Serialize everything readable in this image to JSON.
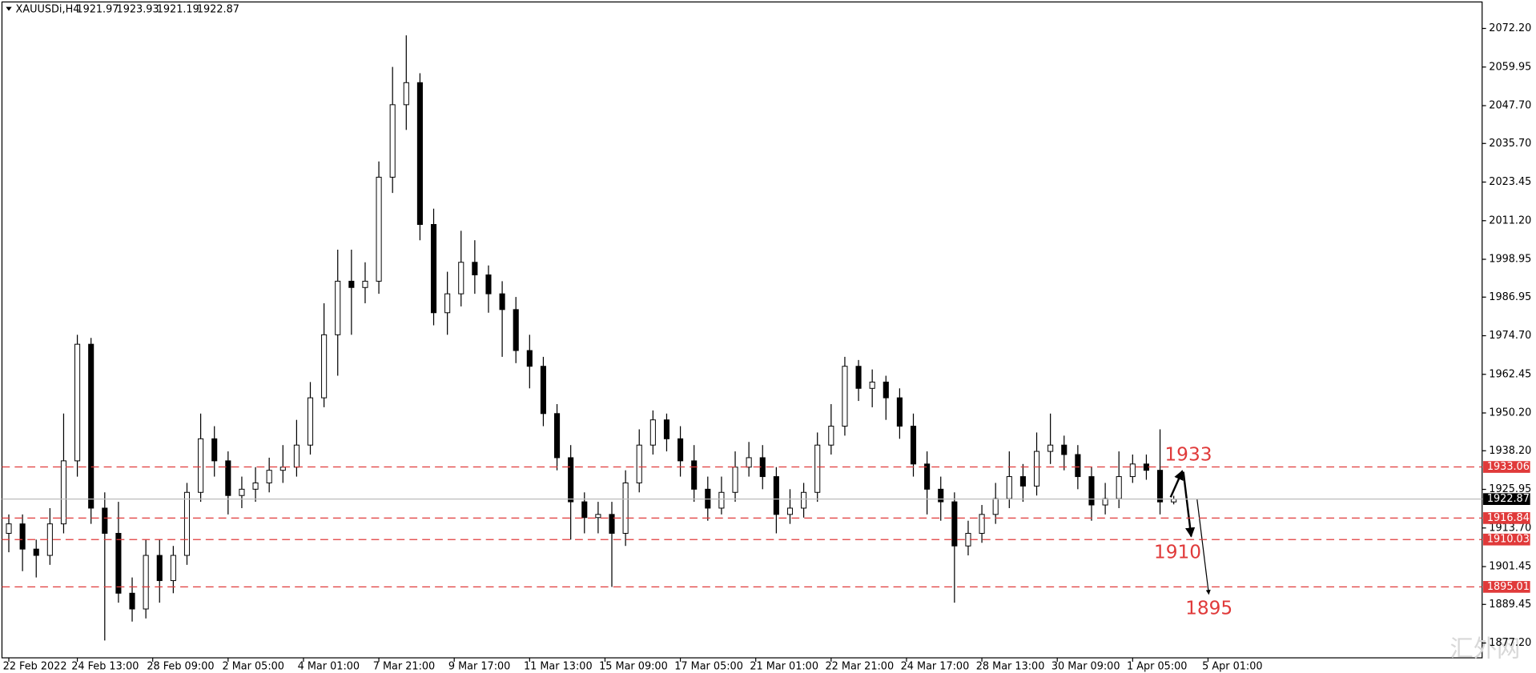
{
  "chart_data": {
    "type": "candlestick",
    "symbol": "XAUUSDi,H4",
    "open": [
      1912,
      1915,
      1907,
      1905,
      1915,
      1935,
      1972,
      1920,
      1912,
      1893,
      1888,
      1905,
      1897,
      1905,
      1925,
      1942,
      1935,
      1924,
      1926,
      1928,
      1932,
      1933,
      1940,
      1955,
      1975,
      1992,
      1990,
      1992,
      2025,
      2048,
      2055,
      2010,
      1982,
      1988,
      1998,
      1994,
      1988,
      1983,
      1970,
      1965,
      1950,
      1936,
      1922,
      1917,
      1918,
      1912,
      1928,
      1940,
      1948,
      1942,
      1935,
      1926,
      1920,
      1925,
      1933,
      1936,
      1930,
      1918,
      1920,
      1925,
      1940,
      1946,
      1965,
      1958,
      1960,
      1955,
      1946,
      1934,
      1926,
      1922,
      1908,
      1912,
      1918,
      1923,
      1930,
      1927,
      1938,
      1940,
      1937,
      1930,
      1921,
      1923,
      1930,
      1934,
      1932,
      1921.97
    ],
    "high": [
      1918,
      1918,
      1910,
      1920,
      1950,
      1975,
      1974,
      1925,
      1922,
      1898,
      1910,
      1910,
      1908,
      1928,
      1950,
      1946,
      1938,
      1930,
      1933,
      1936,
      1940,
      1948,
      1960,
      1985,
      2002,
      2002,
      1998,
      2030,
      2060,
      2070,
      2058,
      2015,
      1995,
      2008,
      2005,
      1997,
      1992,
      1987,
      1975,
      1968,
      1953,
      1940,
      1925,
      1922,
      1922,
      1932,
      1945,
      1951,
      1950,
      1946,
      1940,
      1930,
      1930,
      1938,
      1941,
      1940,
      1933,
      1926,
      1928,
      1944,
      1953,
      1968,
      1967,
      1964,
      1962,
      1958,
      1950,
      1938,
      1930,
      1925,
      1916,
      1921,
      1928,
      1938,
      1934,
      1944,
      1950,
      1943,
      1940,
      1933,
      1928,
      1938,
      1937,
      1937,
      1945,
      1923.93
    ],
    "low": [
      1906,
      1900,
      1898,
      1902,
      1912,
      1930,
      1915,
      1878,
      1890,
      1884,
      1885,
      1890,
      1893,
      1902,
      1922,
      1930,
      1918,
      1920,
      1922,
      1925,
      1928,
      1930,
      1937,
      1952,
      1962,
      1975,
      1985,
      1988,
      2020,
      2040,
      2005,
      1978,
      1975,
      1984,
      1988,
      1982,
      1968,
      1966,
      1958,
      1946,
      1932,
      1910,
      1912,
      1912,
      1895,
      1908,
      1925,
      1937,
      1938,
      1930,
      1922,
      1916,
      1918,
      1922,
      1930,
      1926,
      1912,
      1915,
      1917,
      1922,
      1937,
      1943,
      1954,
      1952,
      1948,
      1942,
      1930,
      1918,
      1916,
      1890,
      1905,
      1909,
      1915,
      1920,
      1922,
      1924,
      1934,
      1932,
      1926,
      1916,
      1918,
      1920,
      1928,
      1929,
      1918,
      1921.19
    ],
    "close": [
      1915,
      1907,
      1905,
      1915,
      1935,
      1972,
      1920,
      1912,
      1893,
      1888,
      1905,
      1897,
      1905,
      1925,
      1942,
      1935,
      1924,
      1926,
      1928,
      1932,
      1933,
      1940,
      1955,
      1975,
      1992,
      1990,
      1992,
      2025,
      2048,
      2055,
      2010,
      1982,
      1988,
      1998,
      1994,
      1988,
      1983,
      1970,
      1965,
      1950,
      1936,
      1922,
      1917,
      1918,
      1912,
      1928,
      1940,
      1948,
      1942,
      1935,
      1926,
      1920,
      1925,
      1933,
      1936,
      1930,
      1918,
      1920,
      1925,
      1940,
      1946,
      1965,
      1958,
      1960,
      1955,
      1946,
      1934,
      1926,
      1922,
      1908,
      1912,
      1918,
      1923,
      1930,
      1927,
      1938,
      1940,
      1937,
      1930,
      1921,
      1923,
      1930,
      1934,
      1932,
      1921.97,
      1922.87
    ],
    "up_color": "#ffffff",
    "down_color": "#000000",
    "xlim": [
      -0.5,
      107.5
    ],
    "xticks": [
      {
        "value": 0,
        "label": "22 Feb 2022"
      },
      {
        "value": 5,
        "label": "24 Feb 13:00"
      },
      {
        "value": 10.5,
        "label": "28 Feb 09:00"
      },
      {
        "value": 16,
        "label": "2 Mar 05:00"
      },
      {
        "value": 21.5,
        "label": "4 Mar 01:00"
      },
      {
        "value": 27,
        "label": "7 Mar 21:00"
      },
      {
        "value": 32.5,
        "label": "9 Mar 17:00"
      },
      {
        "value": 38,
        "label": "11 Mar 13:00"
      },
      {
        "value": 43.5,
        "label": "15 Mar 09:00"
      },
      {
        "value": 49,
        "label": "17 Mar 05:00"
      },
      {
        "value": 54.5,
        "label": "21 Mar 01:00"
      },
      {
        "value": 60,
        "label": "22 Mar 21:00"
      },
      {
        "value": 65.5,
        "label": "24 Mar 17:00"
      },
      {
        "value": 71,
        "label": "28 Mar 13:00"
      },
      {
        "value": 76.5,
        "label": "30 Mar 09:00"
      },
      {
        "value": 82,
        "label": "1 Apr 05:00"
      },
      {
        "value": 87.5,
        "label": "5 Apr 01:00"
      }
    ],
    "ylim": [
      1872.5,
      2080.6
    ],
    "yticks": [
      {
        "value": 2072.2,
        "label": "2072.20"
      },
      2059.95,
      {
        "value": 2047.7,
        "label": "2047.70"
      },
      {
        "value": 2035.7,
        "label": "2035.70"
      },
      2023.45,
      {
        "value": 2011.2,
        "label": "2011.20"
      },
      1998.95,
      1986.95,
      {
        "value": 1974.7,
        "label": "1974.70"
      },
      1962.45,
      {
        "value": 1950.2,
        "label": "1950.20"
      },
      {
        "value": 1938.2,
        "label": "1938.20"
      },
      1925.95,
      {
        "value": 1913.7,
        "label": "1913.70"
      },
      1901.45,
      1889.45,
      {
        "value": 1877.2,
        "label": "1877.20"
      }
    ],
    "levels": [
      1933.06,
      1916.84,
      1910.03,
      1895.01
    ],
    "level_color": "#e03a3a",
    "annotations": [
      "1933",
      "1910",
      "1895"
    ],
    "watermark": "汇外网"
  }
}
